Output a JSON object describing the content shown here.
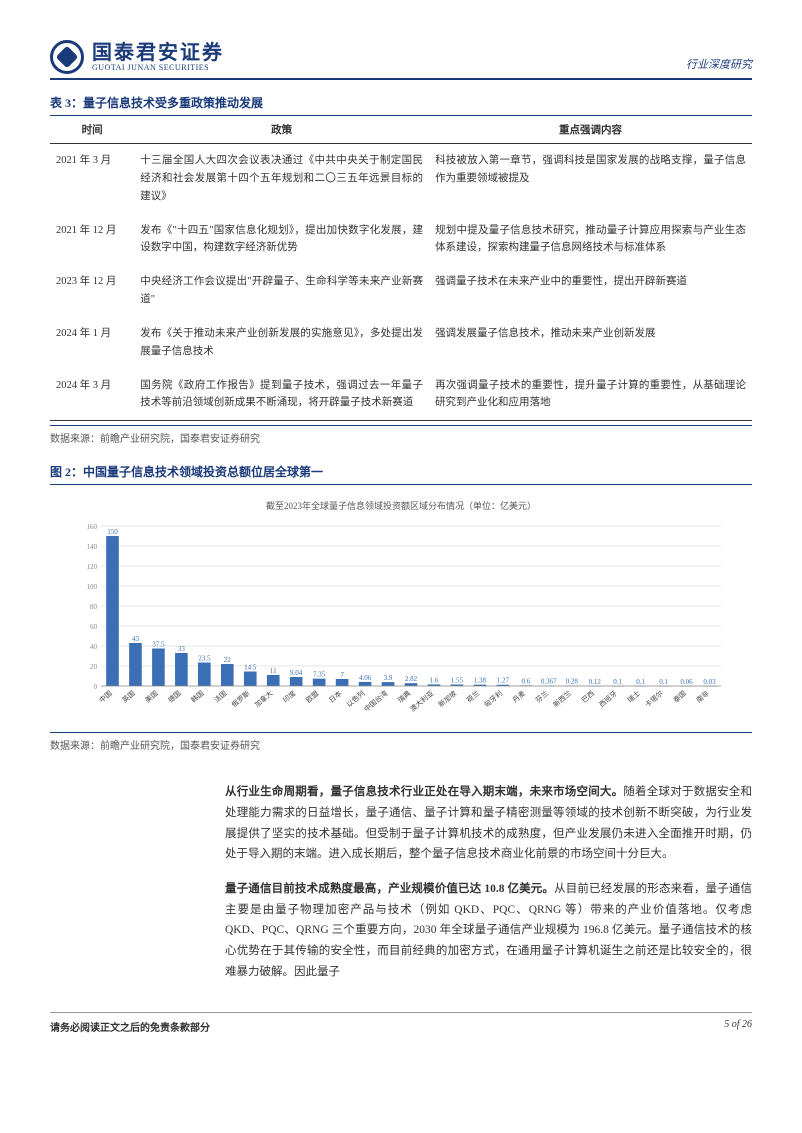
{
  "header": {
    "logo_cn": "国泰君安证券",
    "logo_en": "GUOTAI JUNAN SECURITIES",
    "doc_type": "行业深度研究"
  },
  "table": {
    "title": "表 3：量子信息技术受多重政策推动发展",
    "columns": [
      "时间",
      "政策",
      "重点强调内容"
    ],
    "rows": [
      {
        "time": "2021 年 3 月",
        "policy": "十三届全国人大四次会议表决通过《中共中央关于制定国民经济和社会发展第十四个五年规划和二〇三五年远景目标的建议》",
        "content": "科技被放入第一章节，强调科技是国家发展的战略支撑，量子信息作为重要领域被提及"
      },
      {
        "time": "2021 年 12 月",
        "policy": "发布《\"十四五\"国家信息化规划》，提出加快数字化发展，建设数字中国，构建数字经济新优势",
        "content": "规划中提及量子信息技术研究，推动量子计算应用探索与产业生态体系建设，探索构建量子信息网络技术与标准体系"
      },
      {
        "time": "2023 年 12 月",
        "policy": "中央经济工作会议提出\"开辟量子、生命科学等未来产业新赛道\"",
        "content": "强调量子技术在未来产业中的重要性，提出开辟新赛道"
      },
      {
        "time": "2024 年 1 月",
        "policy": "发布《关于推动未来产业创新发展的实施意见》，多处提出发展量子信息技术",
        "content": "强调发展量子信息技术，推动未来产业创新发展"
      },
      {
        "time": "2024 年 3 月",
        "policy": "国务院《政府工作报告》提到量子技术，强调过去一年量子技术等前沿领域创新成果不断涌现，将开辟量子技术新赛道",
        "content": "再次强调量子技术的重要性，提升量子计算的重要性，从基础理论研究到产业化和应用落地"
      }
    ],
    "source": "数据来源：前瞻产业研究院，国泰君安证券研究"
  },
  "figure": {
    "title": "图 2：中国量子信息技术领域投资总额位居全球第一",
    "subtitle": "截至2023年全球量子信息领域投资额区域分布情况（单位：亿美元）",
    "type": "bar",
    "categories": [
      "中国",
      "英国",
      "美国",
      "德国",
      "韩国",
      "法国",
      "俄罗斯",
      "加拿大",
      "印度",
      "欧盟",
      "日本",
      "以色列",
      "中国台湾",
      "瑞典",
      "澳大利亚",
      "新加坡",
      "荷兰",
      "匈牙利",
      "丹麦",
      "芬兰",
      "新西兰",
      "巴西",
      "西班牙",
      "瑞士",
      "卡塔尔",
      "泰国",
      "南非"
    ],
    "values": [
      150,
      43,
      37.5,
      33,
      23.5,
      22,
      14.5,
      11,
      9.04,
      7.35,
      7,
      4.06,
      3.9,
      2.82,
      1.6,
      1.55,
      1.38,
      1.27,
      0.6,
      0.367,
      0.28,
      0.12,
      0.1,
      0.1,
      0.1,
      0.06,
      0.03
    ],
    "bar_color": "#3b6fb5",
    "label_color": "#3b6fb5",
    "axis_color": "#888888",
    "grid_color": "#cccccc",
    "ylim": [
      0,
      160
    ],
    "ytick_step": 20,
    "label_fontsize": 7,
    "tick_fontsize": 7,
    "bar_width": 0.55,
    "source": "数据来源：前瞻产业研究院，国泰君安证券研究"
  },
  "body": {
    "para1_lead": "从行业生命周期看，量子信息技术行业正处在导入期末端，未来市场空间大。",
    "para1_rest": "随着全球对于数据安全和处理能力需求的日益增长，量子通信、量子计算和量子精密测量等领域的技术创新不断突破，为行业发展提供了坚实的技术基础。但受制于量子计算机技术的成熟度，但产业发展仍未进入全面推开时期，仍处于导入期的末端。进入成长期后，整个量子信息技术商业化前景的市场空间十分巨大。",
    "para2_lead": "量子通信目前技术成熟度最高，产业规模价值已达 10.8 亿美元。",
    "para2_rest": "从目前已经发展的形态来看，量子通信主要是由量子物理加密产品与技术（例如 QKD、PQC、QRNG 等）带来的产业价值落地。仅考虑 QKD、PQC、QRNG 三个重要方向，2030 年全球量子通信产业规模为 196.8 亿美元。量子通信技术的核心优势在于其传输的安全性，而目前经典的加密方式，在通用量子计算机诞生之前还是比较安全的，很难暴力破解。因此量子"
  },
  "footer": {
    "disclaimer": "请务必阅读正文之后的免责条款部分",
    "page": "5 of 26"
  }
}
